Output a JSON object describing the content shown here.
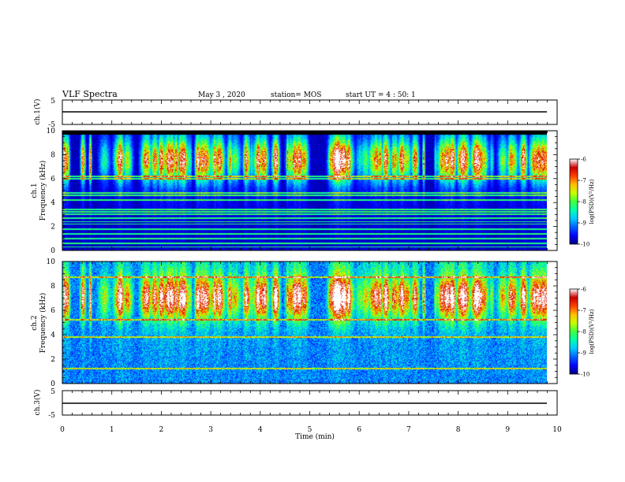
{
  "header": {
    "title": "VLF Spectra",
    "date": "May 3 , 2020",
    "station": "station= MOS",
    "start": "start UT =  4 : 50: 1"
  },
  "chart_data": {
    "type": "heatmap",
    "x_axis": {
      "label": "Time (min)",
      "range": [
        0,
        10
      ],
      "ticks": [
        "0",
        "1",
        "2",
        "3",
        "4",
        "5",
        "6",
        "7",
        "8",
        "9",
        "10"
      ],
      "data_end": 9.83
    },
    "panels": [
      {
        "id": "ch1-waveform",
        "type": "line",
        "ylabel": "ch.1(V)",
        "ylim": [
          -5,
          5
        ],
        "yticks": [
          "5",
          "-5"
        ],
        "value": 0
      },
      {
        "id": "ch1-spectrogram",
        "type": "heatmap",
        "ylabel": [
          "ch.1",
          "Frequency (kHz)"
        ],
        "ylim": [
          0,
          10
        ],
        "yticks": [
          "0",
          "2",
          "4",
          "6",
          "8",
          "10"
        ],
        "background": "black",
        "noise_level": -9.8,
        "data_upper_khz": 9.7,
        "bursts_khz": [
          6,
          9
        ],
        "lines_khz": [
          0.3,
          0.6,
          1.0,
          1.4,
          1.8,
          2.2,
          2.4,
          2.7,
          3.0,
          3.2,
          3.4,
          4.2,
          4.6,
          4.8,
          6.0,
          6.2
        ]
      },
      {
        "id": "ch2-spectrogram",
        "type": "heatmap",
        "ylabel": [
          "ch.2",
          "Frequency (kHz)"
        ],
        "ylim": [
          0,
          10
        ],
        "yticks": [
          "0",
          "2",
          "4",
          "6",
          "8",
          "10"
        ],
        "background": "noise",
        "noise_level": -9.1,
        "bursts_khz": [
          5.5,
          8.5
        ],
        "lines_khz": [
          1.2,
          3.8,
          5.2,
          8.7
        ]
      },
      {
        "id": "ch3-waveform",
        "type": "line",
        "ylabel": "ch.3(V)",
        "ylim": [
          -5,
          5
        ],
        "yticks": [
          "5",
          "-5"
        ],
        "value": 0
      }
    ],
    "colorbar": {
      "label": "log(PSD)(V²/Hz)",
      "range": [
        -10,
        -6
      ],
      "ticks": [
        "-6",
        "-7",
        "-8",
        "-9",
        "-10"
      ],
      "colors": [
        "#000080",
        "#0000ff",
        "#0060ff",
        "#00c8ff",
        "#00ffb0",
        "#40ff40",
        "#c8ff00",
        "#ffc000",
        "#ff4000",
        "#c80000",
        "#ffffff"
      ]
    }
  }
}
